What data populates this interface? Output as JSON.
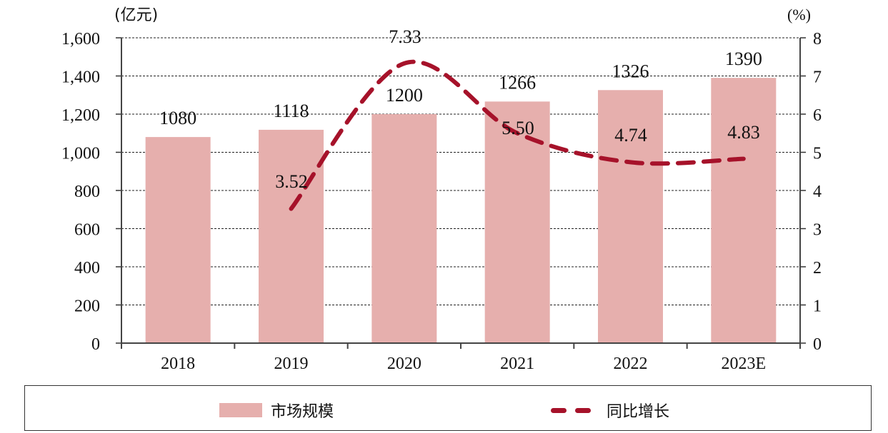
{
  "chart_data": {
    "type": "bar+line",
    "title": "",
    "categories": [
      "2018",
      "2019",
      "2020",
      "2021",
      "2022",
      "2023E"
    ],
    "series": [
      {
        "name": "市场规模",
        "type": "bar",
        "axis": "left",
        "color": "#e6afad",
        "values": [
          1080,
          1118,
          1200,
          1266,
          1326,
          1390
        ]
      },
      {
        "name": "同比增长",
        "type": "line",
        "style": "dashed",
        "axis": "right",
        "color": "#a6122a",
        "values": [
          null,
          3.52,
          7.33,
          5.5,
          4.74,
          4.83
        ]
      }
    ],
    "left_axis": {
      "label": "(亿元)",
      "ylim": [
        0,
        1600
      ],
      "ticks": [
        "0",
        "200",
        "400",
        "600",
        "800",
        "1,000",
        "1,200",
        "1,400",
        "1,600"
      ]
    },
    "right_axis": {
      "label": "(%)",
      "ylim": [
        0,
        8
      ],
      "ticks": [
        "0",
        "1",
        "2",
        "3",
        "4",
        "5",
        "6",
        "7",
        "8"
      ]
    },
    "bar_labels": [
      "1080",
      "1118",
      "1200",
      "1266",
      "1326",
      "1390"
    ],
    "line_labels": [
      "",
      "3.52",
      "7.33",
      "5.50",
      "4.74",
      "4.83"
    ],
    "grid": "horizontal dashed",
    "legend_position": "bottom"
  },
  "legend": {
    "bar_label": "市场规模",
    "line_label": "同比增长"
  }
}
